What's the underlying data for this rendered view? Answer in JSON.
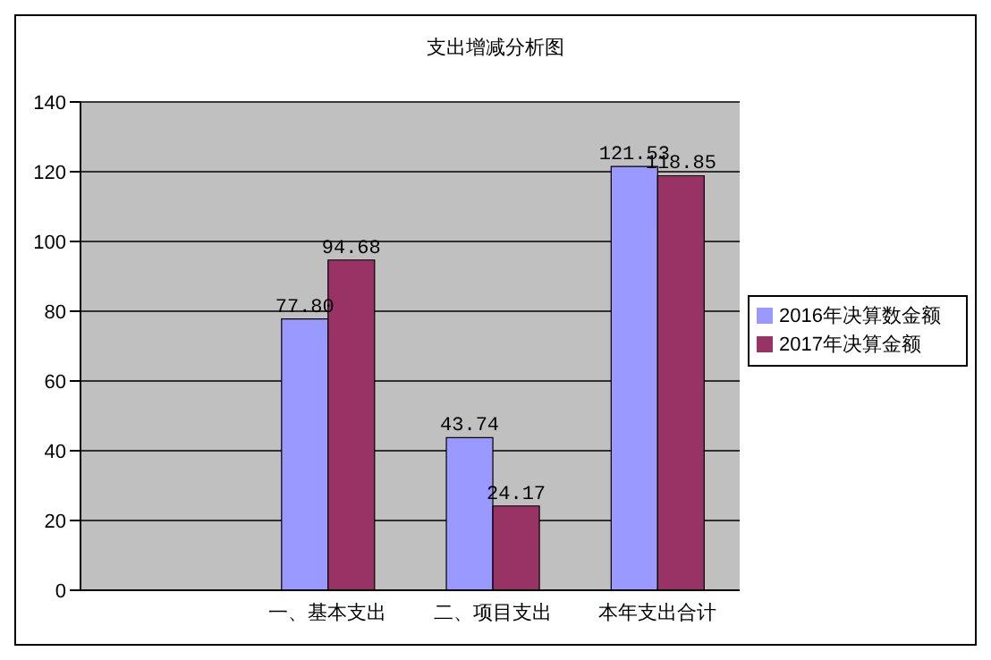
{
  "chart_data": {
    "type": "bar",
    "title": "支出增减分析图",
    "categories": [
      null,
      "一、基本支出",
      "二、项目支出",
      "本年支出合计"
    ],
    "series": [
      {
        "name": "2016年决算数金额",
        "color": "#9999ff",
        "values": [
          null,
          77.8,
          43.74,
          121.53
        ],
        "value_labels": [
          null,
          "77.80",
          "43.74",
          "121.53"
        ]
      },
      {
        "name": "2017年决算金额",
        "color": "#993366",
        "values": [
          null,
          94.68,
          24.17,
          118.85
        ],
        "value_labels": [
          null,
          "94.68",
          "24.17",
          "118.85"
        ]
      }
    ],
    "ylim": [
      0,
      140
    ],
    "yticks": [
      0,
      20,
      40,
      60,
      80,
      100,
      120,
      140
    ],
    "grid": "y",
    "legend": "right"
  }
}
